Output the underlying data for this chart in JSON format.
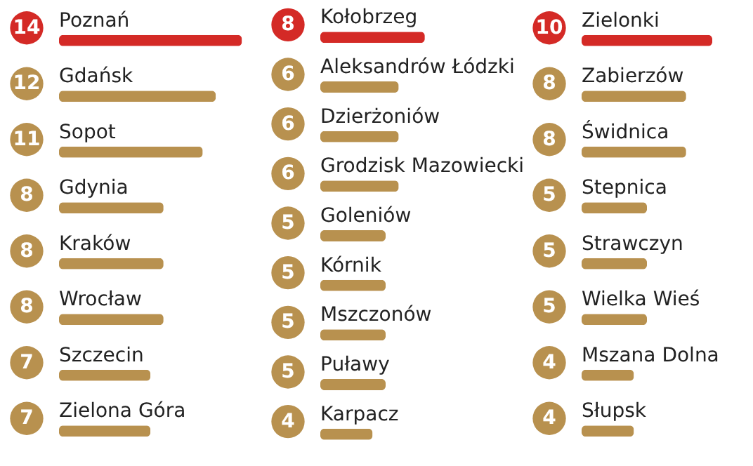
{
  "chart_data": [
    {
      "type": "bar",
      "orientation": "horizontal",
      "data_labels": true,
      "categories": [
        "Poznań",
        "Gdańsk",
        "Sopot",
        "Gdynia",
        "Kraków",
        "Wrocław",
        "Szczecin",
        "Zielona Góra"
      ],
      "values": [
        14,
        12,
        11,
        8,
        8,
        8,
        7,
        7
      ],
      "colors": [
        "#d42a26",
        "#b8914f",
        "#b8914f",
        "#b8914f",
        "#b8914f",
        "#b8914f",
        "#b8914f",
        "#b8914f"
      ]
    },
    {
      "type": "bar",
      "orientation": "horizontal",
      "data_labels": true,
      "categories": [
        "Kołobrzeg",
        "Aleksandrów Łódzki",
        "Dzierżoniów",
        "Grodzisk Mazowiecki",
        "Goleniów",
        "Kórnik",
        "Mszczonów",
        "Puławy",
        "Karpacz"
      ],
      "values": [
        8,
        6,
        6,
        6,
        5,
        5,
        5,
        5,
        4
      ],
      "colors": [
        "#d42a26",
        "#b8914f",
        "#b8914f",
        "#b8914f",
        "#b8914f",
        "#b8914f",
        "#b8914f",
        "#b8914f",
        "#b8914f"
      ]
    },
    {
      "type": "bar",
      "orientation": "horizontal",
      "data_labels": true,
      "categories": [
        "Zielonki",
        "Zabierzów",
        "Świdnica",
        "Stepnica",
        "Strawczyn",
        "Wielka Wieś",
        "Mszana Dolna",
        "Słupsk"
      ],
      "values": [
        10,
        8,
        8,
        5,
        5,
        5,
        4,
        4
      ],
      "colors": [
        "#d42a26",
        "#b8914f",
        "#b8914f",
        "#b8914f",
        "#b8914f",
        "#b8914f",
        "#b8914f",
        "#b8914f"
      ]
    }
  ]
}
